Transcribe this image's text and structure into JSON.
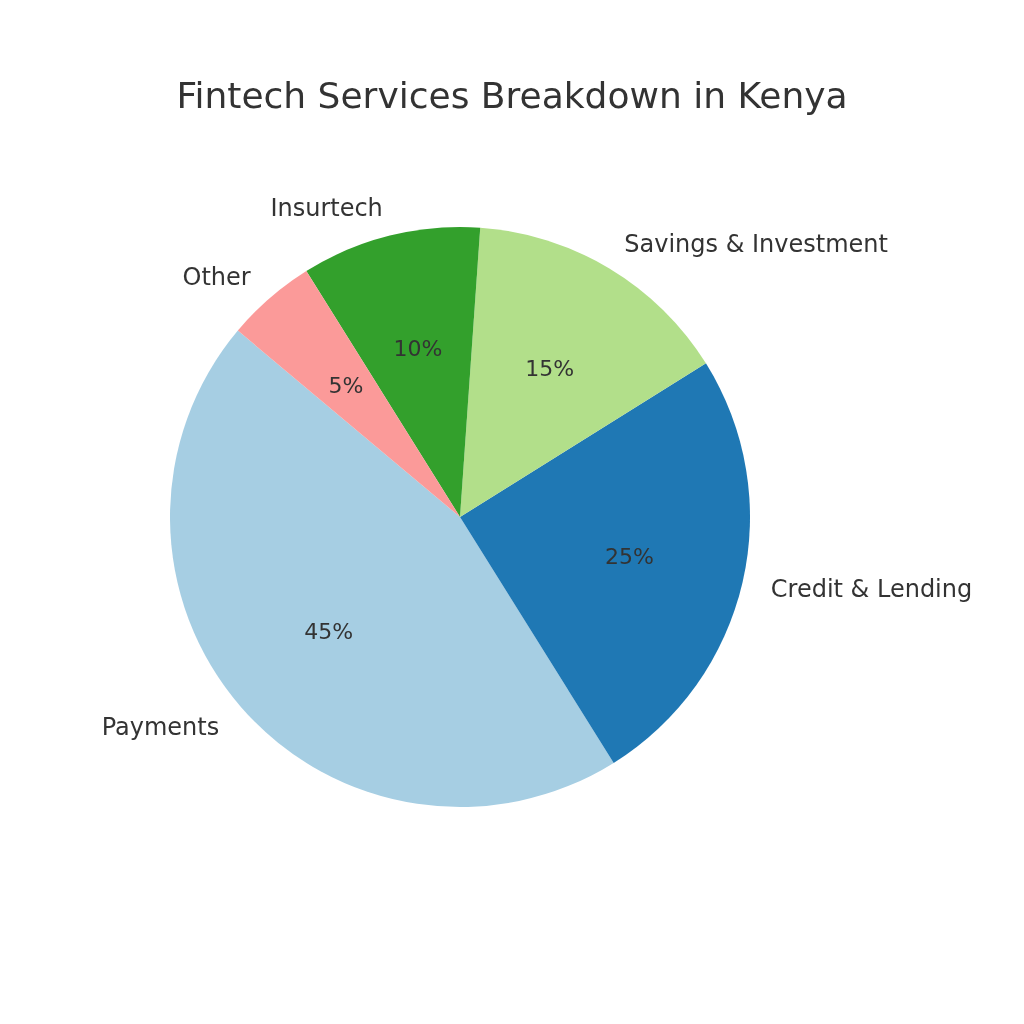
{
  "chart_data": {
    "type": "pie",
    "title": "Fintech Services Breakdown in Kenya",
    "categories": [
      "Payments",
      "Credit & Lending",
      "Savings & Investment",
      "Insurtech",
      "Other"
    ],
    "values": [
      45,
      25,
      15,
      10,
      5
    ],
    "colors": [
      "#a6cee3",
      "#1f78b4",
      "#b2df8a",
      "#33a02c",
      "#fb9a99"
    ],
    "value_labels": [
      "45%",
      "25%",
      "15%",
      "10%",
      "5%"
    ],
    "legend": false
  }
}
